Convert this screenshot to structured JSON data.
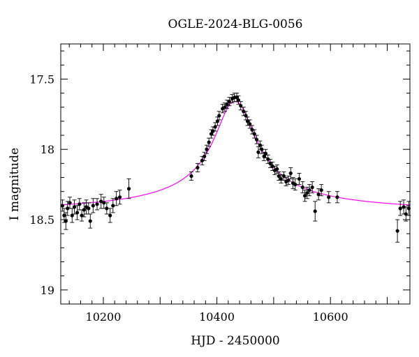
{
  "chart_data": {
    "type": "scatter",
    "title": "OGLE-2024-BLG-0056",
    "xlabel": "HJD - 2450000",
    "ylabel": "I magnitude",
    "xlim": [
      10125,
      10740
    ],
    "ylim": [
      19.1,
      17.25
    ],
    "y_inverted": true,
    "x_ticks": [
      10200,
      10400,
      10600
    ],
    "x_tick_labels": [
      "10200",
      "10400",
      "10600"
    ],
    "y_ticks": [
      17.5,
      18,
      18.5,
      19
    ],
    "y_tick_labels": [
      "17.5",
      "18",
      "18.5",
      "19"
    ],
    "model_color": "#ff00ff",
    "point_color": "#000000",
    "model": {
      "t0": 10432,
      "baseline_mag": 18.46,
      "peak_mag": 17.66,
      "sharpness": 28,
      "width": 34,
      "wing_power": 1.15
    },
    "series": [
      {
        "name": "OGLE data",
        "points": [
          [
            10128,
            18.4,
            0.04
          ],
          [
            10131,
            18.47,
            0.05
          ],
          [
            10134,
            18.51,
            0.06
          ],
          [
            10137,
            18.42,
            0.05
          ],
          [
            10141,
            18.38,
            0.04
          ],
          [
            10145,
            18.47,
            0.05
          ],
          [
            10149,
            18.41,
            0.05
          ],
          [
            10154,
            18.45,
            0.05
          ],
          [
            10158,
            18.39,
            0.04
          ],
          [
            10162,
            18.47,
            0.04
          ],
          [
            10166,
            18.43,
            0.05
          ],
          [
            10170,
            18.41,
            0.05
          ],
          [
            10174,
            18.42,
            0.04
          ],
          [
            10177,
            18.51,
            0.05
          ],
          [
            10182,
            18.4,
            0.05
          ],
          [
            10189,
            18.39,
            0.04
          ],
          [
            10196,
            18.37,
            0.05
          ],
          [
            10201,
            18.38,
            0.04
          ],
          [
            10206,
            18.42,
            0.04
          ],
          [
            10212,
            18.47,
            0.05
          ],
          [
            10217,
            18.4,
            0.05
          ],
          [
            10223,
            18.35,
            0.05
          ],
          [
            10229,
            18.34,
            0.05
          ],
          [
            10245,
            18.28,
            0.07
          ],
          [
            10355,
            18.19,
            0.03
          ],
          [
            10366,
            18.13,
            0.03
          ],
          [
            10374,
            18.08,
            0.03
          ],
          [
            10378,
            18.05,
            0.03
          ],
          [
            10382,
            18.0,
            0.03
          ],
          [
            10386,
            17.95,
            0.03
          ],
          [
            10390,
            17.89,
            0.03
          ],
          [
            10393,
            17.87,
            0.03
          ],
          [
            10397,
            17.84,
            0.03
          ],
          [
            10401,
            17.8,
            0.03
          ],
          [
            10404,
            17.76,
            0.03
          ],
          [
            10410,
            17.71,
            0.03
          ],
          [
            10414,
            17.7,
            0.03
          ],
          [
            10418,
            17.68,
            0.03
          ],
          [
            10422,
            17.66,
            0.03
          ],
          [
            10427,
            17.64,
            0.03
          ],
          [
            10431,
            17.63,
            0.03
          ],
          [
            10435,
            17.63,
            0.03
          ],
          [
            10438,
            17.65,
            0.03
          ],
          [
            10442,
            17.69,
            0.03
          ],
          [
            10447,
            17.73,
            0.03
          ],
          [
            10451,
            17.76,
            0.03
          ],
          [
            10454,
            17.8,
            0.03
          ],
          [
            10458,
            17.82,
            0.03
          ],
          [
            10462,
            17.86,
            0.03
          ],
          [
            10466,
            17.89,
            0.03
          ],
          [
            10470,
            17.93,
            0.03
          ],
          [
            10473,
            18.02,
            0.04
          ],
          [
            10476,
            17.97,
            0.03
          ],
          [
            10479,
            18.0,
            0.03
          ],
          [
            10483,
            18.05,
            0.03
          ],
          [
            10486,
            18.03,
            0.03
          ],
          [
            10490,
            18.07,
            0.03
          ],
          [
            10494,
            18.1,
            0.03
          ],
          [
            10498,
            18.12,
            0.03
          ],
          [
            10502,
            18.15,
            0.03
          ],
          [
            10506,
            18.14,
            0.03
          ],
          [
            10509,
            18.19,
            0.03
          ],
          [
            10513,
            18.21,
            0.03
          ],
          [
            10518,
            18.19,
            0.03
          ],
          [
            10522,
            18.23,
            0.03
          ],
          [
            10526,
            18.22,
            0.03
          ],
          [
            10530,
            18.17,
            0.04
          ],
          [
            10534,
            18.24,
            0.04
          ],
          [
            10538,
            18.25,
            0.04
          ],
          [
            10545,
            18.21,
            0.04
          ],
          [
            10551,
            18.27,
            0.04
          ],
          [
            10555,
            18.33,
            0.04
          ],
          [
            10559,
            18.31,
            0.04
          ],
          [
            10563,
            18.29,
            0.04
          ],
          [
            10568,
            18.27,
            0.04
          ],
          [
            10573,
            18.44,
            0.07
          ],
          [
            10579,
            18.32,
            0.04
          ],
          [
            10584,
            18.29,
            0.04
          ],
          [
            10597,
            18.34,
            0.04
          ],
          [
            10612,
            18.34,
            0.04
          ],
          [
            10718,
            18.58,
            0.08
          ],
          [
            10723,
            18.42,
            0.05
          ],
          [
            10729,
            18.41,
            0.05
          ],
          [
            10733,
            18.46,
            0.05
          ],
          [
            10738,
            18.42,
            0.05
          ]
        ]
      }
    ]
  }
}
